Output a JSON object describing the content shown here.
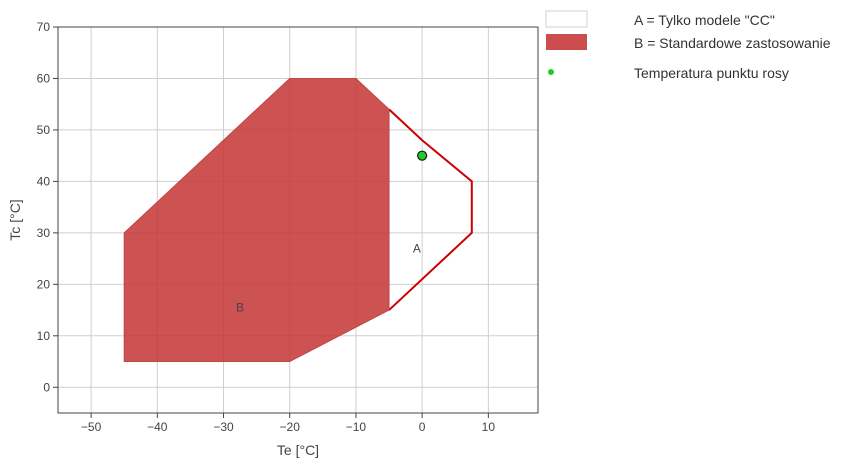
{
  "chart_data": {
    "type": "area",
    "xlabel": "Te [°C]",
    "ylabel": "Tc [°C]",
    "xlim": [
      -55,
      17.5
    ],
    "ylim": [
      -5,
      70
    ],
    "xticks": [
      -50,
      -40,
      -30,
      -20,
      -10,
      0,
      10
    ],
    "xtick_labels": [
      "−50",
      "−40",
      "−30",
      "−20",
      "−10",
      "0",
      "10"
    ],
    "yticks": [
      0,
      10,
      20,
      30,
      40,
      50,
      60,
      70
    ],
    "ytick_labels": [
      "0",
      "10",
      "20",
      "30",
      "40",
      "50",
      "60",
      "70"
    ],
    "grid": true,
    "legend_position": "right",
    "series": [
      {
        "name": "A = Tylko modele \"CC\"",
        "kind": "outline",
        "color": "#cc0000",
        "label": "A",
        "label_at": [
          -0.8,
          27
        ],
        "points": [
          [
            -5,
            54
          ],
          [
            0,
            48
          ],
          [
            7.5,
            40
          ],
          [
            7.5,
            30
          ],
          [
            -5,
            15
          ]
        ]
      },
      {
        "name": "B = Standardowe zastosowanie",
        "kind": "filled",
        "color": "#c63a3a",
        "label": "B",
        "label_at": [
          -27.5,
          15.5
        ],
        "points": [
          [
            -45,
            5
          ],
          [
            -20,
            5
          ],
          [
            -5,
            15
          ],
          [
            -5,
            54
          ],
          [
            -10,
            60
          ],
          [
            -20,
            60
          ],
          [
            -45,
            30
          ]
        ]
      },
      {
        "name": "Temperatura punktu rosy",
        "kind": "point",
        "color": "#22cc22",
        "points": [
          [
            0,
            45
          ]
        ]
      }
    ]
  }
}
